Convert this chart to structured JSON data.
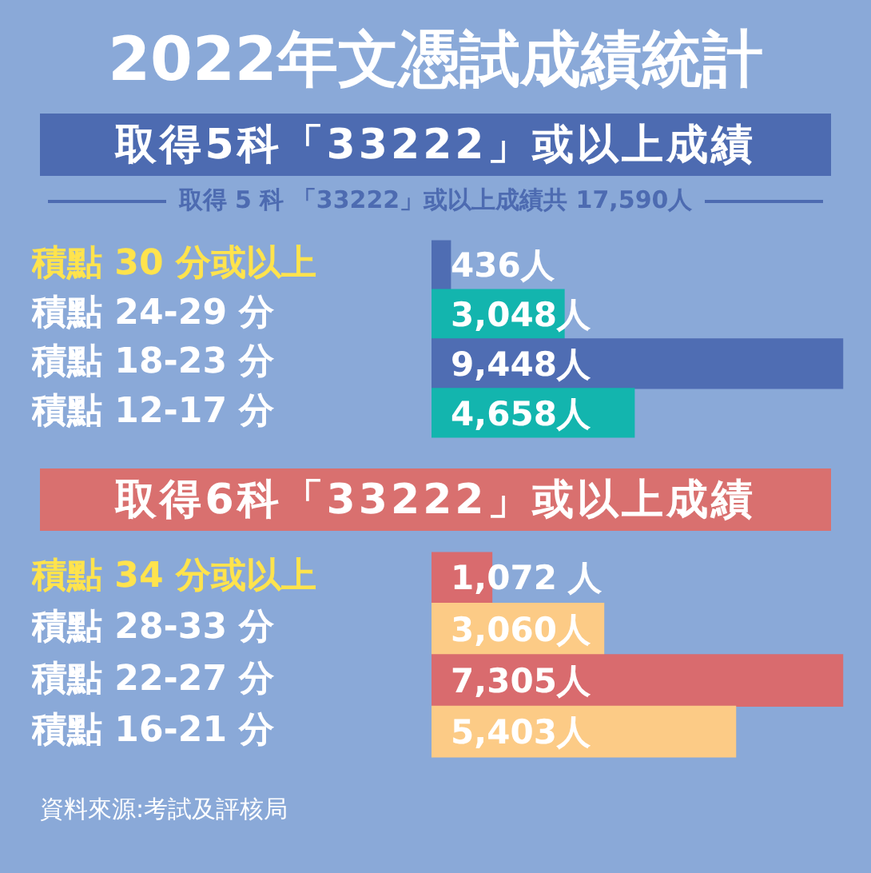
{
  "chart_data": [
    {
      "type": "bar",
      "orientation": "horizontal",
      "title": "2022年文憑試成績統計",
      "subtitle": "取得5科「33222」或以上成績",
      "annotations": [
        "取得 5 科 「33222」或以上成績共 17,590人"
      ],
      "categories": [
        "積點 30 分或以上",
        "積點 24-29 分",
        "積點 18-23 分",
        "積點 12-17 分"
      ],
      "values": [
        436,
        3048,
        9448,
        4658
      ],
      "colors": [
        "#4f6db3",
        "#13b5ae",
        "#4f6db3",
        "#13b5ae"
      ],
      "value_labels": [
        "436人",
        "3,048人",
        "9,448人",
        "4,658人"
      ],
      "tick_labels": "y",
      "legend": false
    },
    {
      "type": "bar",
      "orientation": "horizontal",
      "title": "取得6科「33222」或以上成績",
      "annotations": [
        "資料來源:考試及評核局"
      ],
      "categories": [
        "積點 34 分或以上",
        "積點 28-33 分",
        "積點 22-27 分",
        "積點 16-21 分"
      ],
      "values": [
        1072,
        3060,
        7305,
        5403
      ],
      "colors": [
        "#d96b6e",
        "#fccb86",
        "#d96b6e",
        "#fccb86"
      ],
      "value_labels": [
        "1,072 人",
        "3,060人",
        "7,305人",
        "5,403人"
      ],
      "tick_labels": "y",
      "legend": false
    }
  ]
}
